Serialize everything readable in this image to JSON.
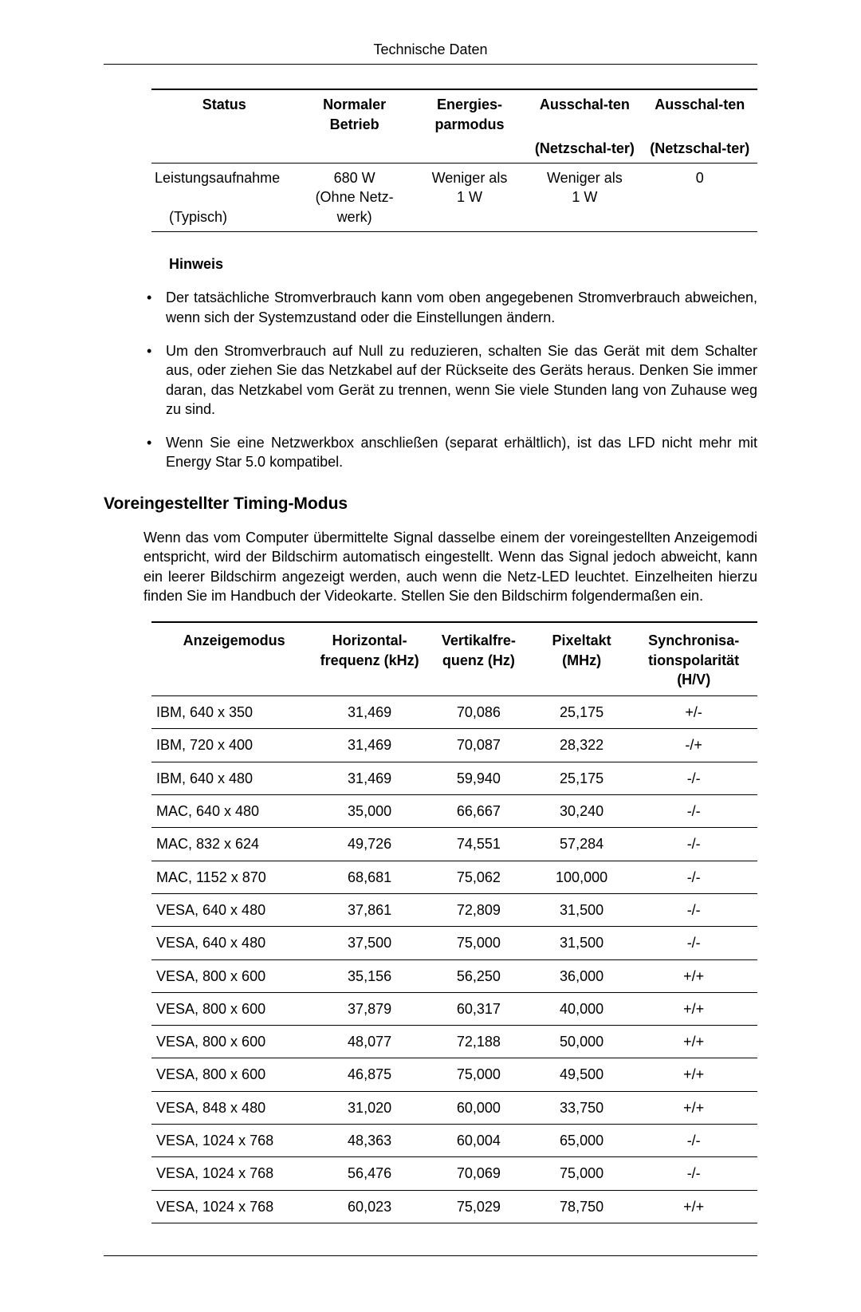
{
  "header": {
    "title": "Technische Daten"
  },
  "table1": {
    "columns": [
      "Status",
      "Normaler Betrieb",
      "Energies-parmodus",
      "Ausschal-ten",
      "Ausschal-ten"
    ],
    "sub_columns": [
      "",
      "",
      "",
      "(Netzschal-ter)",
      "(Netzschal-ter)"
    ],
    "row": {
      "label_line1": "Leistungsaufnahme",
      "label_line2": "(Typisch)",
      "c1_line1": "680 W",
      "c1_line2": "(Ohne Netz-werk)",
      "c2_line1": "Weniger als",
      "c2_line2": "1 W",
      "c3_line1": "Weniger als",
      "c3_line2": "1 W",
      "c4": "0"
    }
  },
  "note_heading": "Hinweis",
  "notes": [
    "Der tatsächliche Stromverbrauch kann vom oben angegebenen Stromverbrauch abweichen, wenn sich der Systemzustand oder die Einstellungen ändern.",
    "Um den Stromverbrauch auf Null zu reduzieren, schalten Sie das Gerät mit dem Schalter aus, oder ziehen Sie das Netzkabel auf der Rückseite des Geräts heraus. Denken Sie immer daran, das Netzkabel vom Gerät zu trennen, wenn Sie viele Stunden lang von Zuhause weg zu sind.",
    "Wenn Sie eine Netzwerkbox anschließen (separat erhältlich), ist das LFD nicht mehr mit Energy Star 5.0 kompatibel."
  ],
  "section_heading": "Voreingestellter Timing-Modus",
  "paragraph": "Wenn das vom Computer übermittelte Signal dasselbe einem der voreingestellten Anzeigemodi entspricht, wird der Bildschirm automatisch eingestellt. Wenn das Signal jedoch abweicht, kann ein leerer Bildschirm angezeigt werden, auch wenn die Netz-LED leuchtet. Einzelheiten hierzu finden Sie im Handbuch der Videokarte. Stellen Sie den Bildschirm folgendermaßen ein.",
  "table2": {
    "headers": [
      "Anzeigemodus",
      "Horizontal-frequenz (kHz)",
      "Vertikalfre-quenz (Hz)",
      "Pixeltakt (MHz)",
      "Synchronisa-tionspolarität (H/V)"
    ],
    "rows": [
      [
        "IBM, 640 x 350",
        "31,469",
        "70,086",
        "25,175",
        "+/-"
      ],
      [
        "IBM, 720 x 400",
        "31,469",
        "70,087",
        "28,322",
        "-/+"
      ],
      [
        "IBM, 640 x 480",
        "31,469",
        "59,940",
        "25,175",
        "-/-"
      ],
      [
        "MAC, 640 x 480",
        "35,000",
        "66,667",
        "30,240",
        "-/-"
      ],
      [
        "MAC, 832 x 624",
        "49,726",
        "74,551",
        "57,284",
        "-/-"
      ],
      [
        "MAC, 1152 x 870",
        "68,681",
        "75,062",
        "100,000",
        "-/-"
      ],
      [
        "VESA, 640 x 480",
        "37,861",
        "72,809",
        "31,500",
        "-/-"
      ],
      [
        "VESA, 640 x 480",
        "37,500",
        "75,000",
        "31,500",
        "-/-"
      ],
      [
        "VESA, 800 x 600",
        "35,156",
        "56,250",
        "36,000",
        "+/+"
      ],
      [
        "VESA, 800 x 600",
        "37,879",
        "60,317",
        "40,000",
        "+/+"
      ],
      [
        "VESA, 800 x 600",
        "48,077",
        "72,188",
        "50,000",
        "+/+"
      ],
      [
        "VESA, 800 x 600",
        "46,875",
        "75,000",
        "49,500",
        "+/+"
      ],
      [
        "VESA, 848 x 480",
        "31,020",
        "60,000",
        "33,750",
        "+/+"
      ],
      [
        "VESA, 1024 x 768",
        "48,363",
        "60,004",
        "65,000",
        "-/-"
      ],
      [
        "VESA, 1024 x 768",
        "56,476",
        "70,069",
        "75,000",
        "-/-"
      ],
      [
        "VESA, 1024 x 768",
        "60,023",
        "75,029",
        "78,750",
        "+/+"
      ]
    ]
  }
}
